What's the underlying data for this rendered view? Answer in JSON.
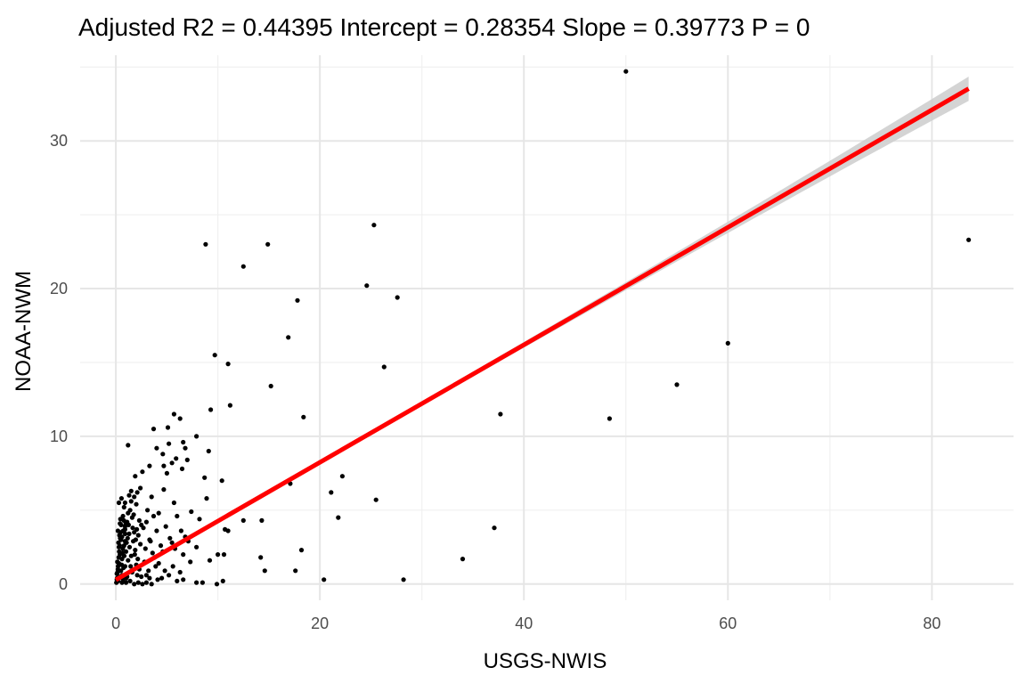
{
  "chart_data": {
    "type": "scatter",
    "title": "Adjusted R2 =  0.44395 Intercept = 0.28354  Slope = 0.39773  P = 0",
    "xlabel": "USGS-NWIS",
    "ylabel": "NOAA-NWM",
    "xlim": [
      -3.5,
      88
    ],
    "ylim": [
      -1.1,
      35.8
    ],
    "x_ticks": [
      0,
      20,
      40,
      60,
      80
    ],
    "x_tick_labels": [
      "0",
      "20",
      "40",
      "60",
      "80"
    ],
    "y_ticks": [
      0,
      10,
      20,
      30
    ],
    "y_tick_labels": [
      "0",
      "10",
      "20",
      "30"
    ],
    "grid": true,
    "colors": {
      "points": "#000000",
      "fit_line": "#ff0000",
      "confidence_band": "#cccccc"
    },
    "fit_line": {
      "intercept": 0.28354,
      "slope": 0.39773,
      "x_range": [
        0,
        83.6
      ]
    },
    "series": [
      {
        "points": [
          [
            50.0,
            34.7
          ],
          [
            83.6,
            23.3
          ],
          [
            25.3,
            24.3
          ],
          [
            8.8,
            23.0
          ],
          [
            14.9,
            23.0
          ],
          [
            12.5,
            21.5
          ],
          [
            24.6,
            20.2
          ],
          [
            27.6,
            19.4
          ],
          [
            17.8,
            19.2
          ],
          [
            16.9,
            16.7
          ],
          [
            60.0,
            16.3
          ],
          [
            9.7,
            15.5
          ],
          [
            11.0,
            14.9
          ],
          [
            26.3,
            14.7
          ],
          [
            55.0,
            13.5
          ],
          [
            15.2,
            13.4
          ],
          [
            11.2,
            12.1
          ],
          [
            9.3,
            11.8
          ],
          [
            37.7,
            11.5
          ],
          [
            5.7,
            11.5
          ],
          [
            6.3,
            11.2
          ],
          [
            18.4,
            11.3
          ],
          [
            48.4,
            11.2
          ],
          [
            3.7,
            10.5
          ],
          [
            5.1,
            10.6
          ],
          [
            7.9,
            10.0
          ],
          [
            6.6,
            9.6
          ],
          [
            1.2,
            9.4
          ],
          [
            5.2,
            9.5
          ],
          [
            4.0,
            9.2
          ],
          [
            6.8,
            9.2
          ],
          [
            9.1,
            9.0
          ],
          [
            4.6,
            8.8
          ],
          [
            5.9,
            8.5
          ],
          [
            7.0,
            8.4
          ],
          [
            5.5,
            8.2
          ],
          [
            3.3,
            8.0
          ],
          [
            4.7,
            8.0
          ],
          [
            6.5,
            7.8
          ],
          [
            2.6,
            7.6
          ],
          [
            5.0,
            7.5
          ],
          [
            1.9,
            7.3
          ],
          [
            10.4,
            7.0
          ],
          [
            8.7,
            7.2
          ],
          [
            22.2,
            7.3
          ],
          [
            17.1,
            6.8
          ],
          [
            4.7,
            6.4
          ],
          [
            1.5,
            6.3
          ],
          [
            2.1,
            6.2
          ],
          [
            21.1,
            6.2
          ],
          [
            3.5,
            5.9
          ],
          [
            1.8,
            5.9
          ],
          [
            8.9,
            5.8
          ],
          [
            25.5,
            5.7
          ],
          [
            0.3,
            5.5
          ],
          [
            5.7,
            5.5
          ],
          [
            7.4,
            4.9
          ],
          [
            4.2,
            4.8
          ],
          [
            6.0,
            4.6
          ],
          [
            21.8,
            4.5
          ],
          [
            12.5,
            4.3
          ],
          [
            14.3,
            4.3
          ],
          [
            8.2,
            4.4
          ],
          [
            3.0,
            4.2
          ],
          [
            37.1,
            3.8
          ],
          [
            10.7,
            3.7
          ],
          [
            11.0,
            3.6
          ],
          [
            4.0,
            3.6
          ],
          [
            6.4,
            3.6
          ],
          [
            5.3,
            3.1
          ],
          [
            6.8,
            3.2
          ],
          [
            3.3,
            3.0
          ],
          [
            7.1,
            2.9
          ],
          [
            5.5,
            2.8
          ],
          [
            7.9,
            2.5
          ],
          [
            18.2,
            2.3
          ],
          [
            6.6,
            2.0
          ],
          [
            10.0,
            2.0
          ],
          [
            10.6,
            2.0
          ],
          [
            14.2,
            1.8
          ],
          [
            34.0,
            1.7
          ],
          [
            9.2,
            1.6
          ],
          [
            7.3,
            1.5
          ],
          [
            5.6,
            1.2
          ],
          [
            14.6,
            0.9
          ],
          [
            17.6,
            0.9
          ],
          [
            6.3,
            0.8
          ],
          [
            4.8,
            0.9
          ],
          [
            20.4,
            0.3
          ],
          [
            28.2,
            0.3
          ],
          [
            7.9,
            0.1
          ],
          [
            10.5,
            0.2
          ],
          [
            6.6,
            0.3
          ],
          [
            8.5,
            0.1
          ],
          [
            6.0,
            0.2
          ],
          [
            9.9,
            0.0
          ],
          [
            4.5,
            0.4
          ],
          [
            3.0,
            0.6
          ],
          [
            2.3,
            1.0
          ],
          [
            2.8,
            1.5
          ],
          [
            3.9,
            1.2
          ],
          [
            3.6,
            2.1
          ],
          [
            4.4,
            2.6
          ],
          [
            2.2,
            3.3
          ],
          [
            2.5,
            4.0
          ],
          [
            3.1,
            5.0
          ],
          [
            1.6,
            4.5
          ],
          [
            2.0,
            5.4
          ],
          [
            1.4,
            5.0
          ],
          [
            1.1,
            4.2
          ],
          [
            0.9,
            3.7
          ],
          [
            0.7,
            4.6
          ],
          [
            1.7,
            2.9
          ],
          [
            1.3,
            3.4
          ],
          [
            0.5,
            3.0
          ],
          [
            0.8,
            2.6
          ],
          [
            1.0,
            2.2
          ],
          [
            0.4,
            2.0
          ],
          [
            0.6,
            1.7
          ],
          [
            0.3,
            1.4
          ],
          [
            0.2,
            1.0
          ],
          [
            0.1,
            0.7
          ],
          [
            0.4,
            0.5
          ],
          [
            0.7,
            0.3
          ],
          [
            1.0,
            0.1
          ],
          [
            1.4,
            0.2
          ],
          [
            1.8,
            0.0
          ],
          [
            2.2,
            0.1
          ],
          [
            2.6,
            0.0
          ],
          [
            3.0,
            0.1
          ],
          [
            3.5,
            0.0
          ],
          [
            0.2,
            0.2
          ],
          [
            0.5,
            0.9
          ],
          [
            0.9,
            1.2
          ],
          [
            1.2,
            1.6
          ],
          [
            1.5,
            1.9
          ],
          [
            1.9,
            2.3
          ],
          [
            2.4,
            2.7
          ],
          [
            0.3,
            2.5
          ],
          [
            0.6,
            3.2
          ],
          [
            0.9,
            3.9
          ],
          [
            1.2,
            4.8
          ],
          [
            1.5,
            5.6
          ],
          [
            0.8,
            5.2
          ],
          [
            0.4,
            4.1
          ],
          [
            0.2,
            3.6
          ],
          [
            1.8,
            3.5
          ],
          [
            2.3,
            4.3
          ],
          [
            2.7,
            3.8
          ],
          [
            2.9,
            2.4
          ],
          [
            3.4,
            2.9
          ],
          [
            3.8,
            1.8
          ],
          [
            4.2,
            1.4
          ],
          [
            4.6,
            2.2
          ],
          [
            2.0,
            1.3
          ],
          [
            1.6,
            0.8
          ],
          [
            2.5,
            0.5
          ],
          [
            3.2,
            0.9
          ],
          [
            0.1,
            0.3
          ],
          [
            0.15,
            1.5
          ],
          [
            0.25,
            2.8
          ],
          [
            0.35,
            3.3
          ],
          [
            0.45,
            4.4
          ],
          [
            0.55,
            5.8
          ],
          [
            0.65,
            2.1
          ],
          [
            0.75,
            1.1
          ],
          [
            0.85,
            0.6
          ],
          [
            1.05,
            2.8
          ],
          [
            1.15,
            3.1
          ],
          [
            1.25,
            4.0
          ],
          [
            1.35,
            2.5
          ],
          [
            1.45,
            1.2
          ],
          [
            1.65,
            3.8
          ],
          [
            1.75,
            4.7
          ],
          [
            1.85,
            2.0
          ],
          [
            1.95,
            3.0
          ],
          [
            2.05,
            3.7
          ],
          [
            2.15,
            1.7
          ],
          [
            0.05,
            0.1
          ],
          [
            0.12,
            0.4
          ],
          [
            0.18,
            0.8
          ],
          [
            0.22,
            1.2
          ],
          [
            0.28,
            1.8
          ],
          [
            0.32,
            2.2
          ],
          [
            0.38,
            2.6
          ],
          [
            0.42,
            3.1
          ],
          [
            0.48,
            3.5
          ],
          [
            0.52,
            4.0
          ],
          [
            0.58,
            1.3
          ],
          [
            0.62,
            0.6
          ],
          [
            0.68,
            2.4
          ],
          [
            0.72,
            3.6
          ],
          [
            0.78,
            4.3
          ],
          [
            0.82,
            1.9
          ],
          [
            0.88,
            2.9
          ],
          [
            0.92,
            3.4
          ],
          [
            0.98,
            4.1
          ],
          [
            1.02,
            0.4
          ],
          [
            2.4,
            6.5
          ],
          [
            1.3,
            6.0
          ],
          [
            0.9,
            5.5
          ],
          [
            3.7,
            4.6
          ],
          [
            4.9,
            3.9
          ],
          [
            5.8,
            2.4
          ],
          [
            4.1,
            0.3
          ],
          [
            5.2,
            0.6
          ],
          [
            3.3,
            0.4
          ],
          [
            2.1,
            0.6
          ],
          [
            1.1,
            0.5
          ],
          [
            0.6,
            0.1
          ]
        ]
      }
    ]
  }
}
